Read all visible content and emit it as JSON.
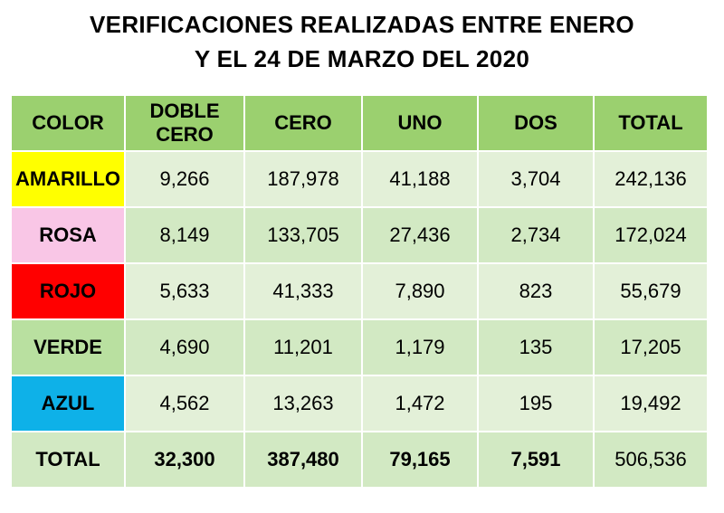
{
  "title": {
    "line1": "VERIFICACIONES REALIZADAS ENTRE ENERO",
    "line2": "Y EL 24 DE MARZO DEL 2020"
  },
  "table": {
    "headers": [
      "COLOR",
      "DOBLE CERO",
      "CERO",
      "UNO",
      "DOS",
      "TOTAL"
    ],
    "rows": [
      {
        "label": "AMARILLO",
        "label_color": "#ffff00",
        "values": [
          "9,266",
          "187,978",
          "41,188",
          "3,704",
          "242,136"
        ]
      },
      {
        "label": "ROSA",
        "label_color": "#f9c6e6",
        "values": [
          "8,149",
          "133,705",
          "27,436",
          "2,734",
          "172,024"
        ]
      },
      {
        "label": "ROJO",
        "label_color": "#ff0000",
        "values": [
          "5,633",
          "41,333",
          "7,890",
          "823",
          "55,679"
        ]
      },
      {
        "label": "VERDE",
        "label_color": "#b9e0a0",
        "values": [
          "4,690",
          "11,201",
          "1,179",
          "135",
          "17,205"
        ]
      },
      {
        "label": "AZUL",
        "label_color": "#0eb1e8",
        "values": [
          "4,562",
          "13,263",
          "1,472",
          "195",
          "19,492"
        ]
      },
      {
        "label": "TOTAL",
        "label_color": "",
        "values": [
          "32,300",
          "387,480",
          "79,165",
          "7,591",
          "506,536"
        ]
      }
    ]
  },
  "colors": {
    "header_bg": "#9bd06f",
    "row_bg_light": "#e3f0d8",
    "row_bg_alt": "#d2e9c3"
  }
}
